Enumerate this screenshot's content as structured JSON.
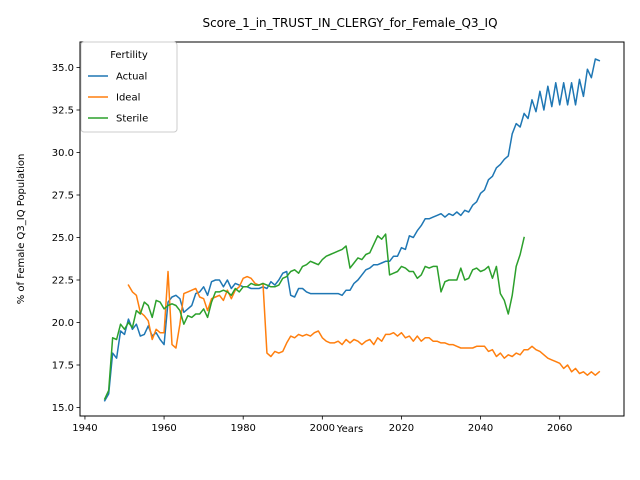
{
  "chart_data": {
    "type": "line",
    "title": "Score_1_in_TRUST_IN_CLERGY_for_Female_Q3_IQ",
    "xlabel": "Years",
    "ylabel": "% of Female Q3_IQ Population",
    "xlim": [
      1938.75,
      2076.25
    ],
    "ylim": [
      14.5,
      36.5
    ],
    "xticks": [
      1940,
      1960,
      1980,
      2000,
      2020,
      2040,
      2060
    ],
    "yticks": [
      15.0,
      17.5,
      20.0,
      22.5,
      25.0,
      27.5,
      30.0,
      32.5,
      35.0
    ],
    "ytick_labels": [
      "15.0",
      "17.5",
      "20.0",
      "22.5",
      "25.0",
      "27.5",
      "30.0",
      "32.5",
      "35.0"
    ],
    "grid": false,
    "legend": {
      "title": "Fertility",
      "placement": "top-left"
    },
    "series": [
      {
        "name": "Actual",
        "color": "#1f77b4",
        "x": [
          1945,
          1946,
          1947,
          1948,
          1949,
          1950,
          1951,
          1952,
          1953,
          1954,
          1955,
          1956,
          1957,
          1958,
          1959,
          1960,
          1961,
          1962,
          1963,
          1964,
          1965,
          1966,
          1967,
          1968,
          1969,
          1970,
          1971,
          1972,
          1973,
          1974,
          1975,
          1976,
          1977,
          1978,
          1979,
          1980,
          1981,
          1982,
          1983,
          1984,
          1985,
          1986,
          1987,
          1988,
          1989,
          1990,
          1991,
          1992,
          1993,
          1994,
          1995,
          1996,
          1997,
          1998,
          1999,
          2000,
          2001,
          2002,
          2003,
          2004,
          2005,
          2006,
          2007,
          2008,
          2009,
          2010,
          2011,
          2012,
          2013,
          2014,
          2015,
          2016,
          2017,
          2018,
          2019,
          2020,
          2021,
          2022,
          2023,
          2024,
          2025,
          2026,
          2027,
          2028,
          2029,
          2030,
          2031,
          2032,
          2033,
          2034,
          2035,
          2036,
          2037,
          2038,
          2039,
          2040,
          2041,
          2042,
          2043,
          2044,
          2045,
          2046,
          2047,
          2048,
          2049,
          2050,
          2051,
          2052,
          2053,
          2054,
          2055,
          2056,
          2057,
          2058,
          2059,
          2060,
          2061,
          2062,
          2063,
          2064,
          2065,
          2066,
          2067,
          2068,
          2069,
          2070
        ],
        "values": [
          15.4,
          15.8,
          18.2,
          17.9,
          19.5,
          19.3,
          20.2,
          19.6,
          19.9,
          19.2,
          19.3,
          19.8,
          19.2,
          19.4,
          19.0,
          18.7,
          21.2,
          21.5,
          21.6,
          21.4,
          20.6,
          20.8,
          21.0,
          21.7,
          21.8,
          22.1,
          21.6,
          22.4,
          22.5,
          22.5,
          22.1,
          22.5,
          22.0,
          22.3,
          22.2,
          22.1,
          22.1,
          22.0,
          22.0,
          22.0,
          22.1,
          22.0,
          22.4,
          22.2,
          22.5,
          22.9,
          23.0,
          21.6,
          21.5,
          22.0,
          22.0,
          21.8,
          21.7,
          21.7,
          21.7,
          21.7,
          21.7,
          21.7,
          21.7,
          21.7,
          21.6,
          21.9,
          21.9,
          22.3,
          22.5,
          22.8,
          23.1,
          23.2,
          23.4,
          23.4,
          23.5,
          23.6,
          23.6,
          23.9,
          23.9,
          24.4,
          24.3,
          25.1,
          25.0,
          25.4,
          25.7,
          26.1,
          26.1,
          26.2,
          26.3,
          26.4,
          26.2,
          26.4,
          26.3,
          26.5,
          26.3,
          26.6,
          26.5,
          26.9,
          27.1,
          27.6,
          27.8,
          28.4,
          28.6,
          29.1,
          29.3,
          29.6,
          29.8,
          31.1,
          31.7,
          31.5,
          32.3,
          32.0,
          33.1,
          32.4,
          33.6,
          32.5,
          33.9,
          32.7,
          34.1,
          32.8,
          34.1,
          32.8,
          34.1,
          32.8,
          34.3,
          33.3,
          34.9,
          34.4,
          35.5,
          35.4
        ]
      },
      {
        "name": "Ideal",
        "color": "#ff7f0e",
        "x": [
          1951,
          1952,
          1953,
          1954,
          1955,
          1956,
          1957,
          1958,
          1959,
          1960,
          1961,
          1962,
          1963,
          1964,
          1965,
          1966,
          1967,
          1968,
          1969,
          1970,
          1971,
          1972,
          1973,
          1974,
          1975,
          1976,
          1977,
          1978,
          1979,
          1980,
          1981,
          1982,
          1983,
          1984,
          1985,
          1986,
          1987,
          1988,
          1989,
          1990,
          1991,
          1992,
          1993,
          1994,
          1995,
          1996,
          1997,
          1998,
          1999,
          2000,
          2001,
          2002,
          2003,
          2004,
          2005,
          2006,
          2007,
          2008,
          2009,
          2010,
          2011,
          2012,
          2013,
          2014,
          2015,
          2016,
          2017,
          2018,
          2019,
          2020,
          2021,
          2022,
          2023,
          2024,
          2025,
          2026,
          2027,
          2028,
          2029,
          2030,
          2031,
          2032,
          2033,
          2034,
          2035,
          2036,
          2037,
          2038,
          2039,
          2040,
          2041,
          2042,
          2043,
          2044,
          2045,
          2046,
          2047,
          2048,
          2049,
          2050,
          2051,
          2052,
          2053,
          2054,
          2055,
          2056,
          2057,
          2058,
          2059,
          2060,
          2061,
          2062,
          2063,
          2064,
          2065,
          2066,
          2067,
          2068,
          2069,
          2070
        ],
        "values": [
          22.2,
          21.8,
          21.6,
          20.6,
          20.4,
          20.1,
          19.0,
          19.6,
          19.4,
          19.4,
          23.0,
          18.7,
          18.5,
          19.9,
          21.7,
          21.8,
          21.9,
          22.0,
          21.5,
          21.4,
          20.7,
          21.4,
          21.5,
          21.6,
          21.3,
          21.9,
          21.4,
          21.9,
          22.1,
          22.6,
          22.7,
          22.6,
          22.3,
          22.2,
          22.3,
          18.2,
          18.0,
          18.3,
          18.2,
          18.3,
          18.8,
          19.2,
          19.1,
          19.3,
          19.2,
          19.3,
          19.2,
          19.4,
          19.5,
          19.1,
          18.9,
          18.8,
          18.8,
          18.9,
          18.7,
          19.0,
          18.8,
          19.0,
          18.9,
          18.7,
          18.9,
          19.0,
          18.7,
          19.1,
          18.9,
          19.3,
          19.3,
          19.4,
          19.2,
          19.4,
          19.1,
          19.2,
          18.9,
          19.2,
          18.9,
          19.1,
          19.1,
          18.9,
          18.9,
          18.8,
          18.8,
          18.7,
          18.7,
          18.6,
          18.5,
          18.5,
          18.5,
          18.5,
          18.6,
          18.6,
          18.6,
          18.3,
          18.4,
          18.0,
          18.2,
          17.9,
          18.1,
          18.0,
          18.2,
          18.1,
          18.4,
          18.4,
          18.6,
          18.4,
          18.3,
          18.1,
          17.9,
          17.8,
          17.7,
          17.6,
          17.3,
          17.5,
          17.1,
          17.3,
          17.0,
          17.1,
          16.9,
          17.1,
          16.9,
          17.1
        ]
      },
      {
        "name": "Sterile",
        "color": "#2ca02c",
        "x": [
          1945,
          1946,
          1947,
          1948,
          1949,
          1950,
          1951,
          1952,
          1953,
          1954,
          1955,
          1956,
          1957,
          1958,
          1959,
          1960,
          1961,
          1962,
          1963,
          1964,
          1965,
          1966,
          1967,
          1968,
          1969,
          1970,
          1971,
          1972,
          1973,
          1974,
          1975,
          1976,
          1977,
          1978,
          1979,
          1980,
          1981,
          1982,
          1983,
          1984,
          1985,
          1986,
          1987,
          1988,
          1989,
          1990,
          1991,
          1992,
          1993,
          1994,
          1995,
          1996,
          1997,
          1998,
          1999,
          2000,
          2001,
          2002,
          2003,
          2004,
          2005,
          2006,
          2007,
          2008,
          2009,
          2010,
          2011,
          2012,
          2013,
          2014,
          2015,
          2016,
          2017,
          2018,
          2019,
          2020,
          2021,
          2022,
          2023,
          2024,
          2025,
          2026,
          2027,
          2028,
          2029,
          2030,
          2031,
          2032,
          2033,
          2034,
          2035,
          2036,
          2037,
          2038,
          2039,
          2040,
          2041,
          2042,
          2043,
          2044,
          2045,
          2046,
          2047,
          2048,
          2049,
          2050,
          2051
        ],
        "values": [
          15.5,
          16.0,
          19.1,
          19.0,
          19.9,
          19.6,
          20.0,
          19.7,
          20.7,
          20.5,
          21.2,
          21.0,
          20.3,
          21.3,
          21.2,
          20.8,
          21.0,
          21.1,
          21.0,
          20.7,
          19.9,
          20.4,
          20.3,
          20.5,
          20.5,
          20.8,
          20.3,
          21.2,
          21.8,
          21.8,
          21.9,
          21.8,
          21.6,
          22.0,
          21.8,
          22.1,
          22.1,
          22.3,
          22.2,
          22.2,
          22.3,
          22.2,
          22.1,
          22.1,
          22.2,
          22.6,
          22.7,
          23.0,
          23.1,
          22.9,
          23.3,
          23.4,
          23.6,
          23.5,
          23.4,
          23.7,
          23.9,
          24.0,
          24.1,
          24.2,
          24.3,
          24.5,
          23.2,
          23.5,
          23.8,
          23.7,
          24.0,
          24.1,
          24.6,
          25.1,
          24.9,
          25.2,
          22.8,
          22.9,
          23.0,
          23.3,
          23.2,
          23.0,
          23.0,
          22.6,
          22.8,
          23.3,
          23.2,
          23.3,
          23.3,
          21.8,
          22.4,
          22.5,
          22.5,
          22.5,
          23.2,
          22.5,
          22.6,
          23.1,
          23.2,
          23.0,
          23.1,
          23.3,
          22.6,
          23.3,
          21.7,
          21.3,
          20.5,
          21.6,
          23.3,
          24.0,
          25.0
        ]
      }
    ]
  }
}
